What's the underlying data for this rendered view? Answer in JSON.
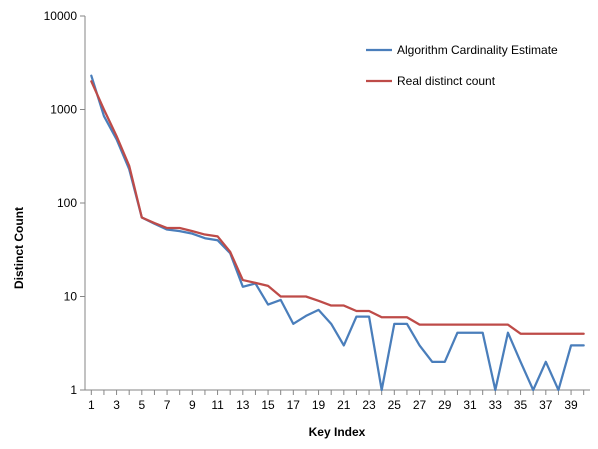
{
  "chart_data": {
    "type": "line",
    "title": "",
    "xlabel": "Key Index",
    "ylabel": "Distinct Count",
    "yscale": "log",
    "ylim": [
      1,
      10000
    ],
    "xlim": [
      0.5,
      40.5
    ],
    "grid": false,
    "legend_position": "top-right",
    "x": [
      1,
      2,
      3,
      4,
      5,
      6,
      7,
      8,
      9,
      10,
      11,
      12,
      13,
      14,
      15,
      16,
      17,
      18,
      19,
      20,
      21,
      22,
      23,
      24,
      25,
      26,
      27,
      28,
      29,
      30,
      31,
      32,
      33,
      34,
      35,
      36,
      37,
      38,
      39,
      40
    ],
    "x_tick_labels": [
      "1",
      "3",
      "5",
      "7",
      "9",
      "11",
      "13",
      "15",
      "17",
      "19",
      "21",
      "23",
      "25",
      "27",
      "29",
      "31",
      "33",
      "35",
      "37",
      "39"
    ],
    "y_tick_labels": [
      "1",
      "10",
      "100",
      "1000",
      "10000"
    ],
    "y_ticks": [
      1,
      10,
      100,
      1000,
      10000
    ],
    "series": [
      {
        "name": "Algorithm Cardinality Estimate",
        "color": "#4a7ebb",
        "values": [
          2300,
          850,
          480,
          230,
          70,
          60,
          52,
          50,
          47,
          42,
          40,
          29,
          12.7,
          13.8,
          8.2,
          9.2,
          5.1,
          6.2,
          7.2,
          5.1,
          3.0,
          6.1,
          6.1,
          1.0,
          5.1,
          5.1,
          3.0,
          2.0,
          2.0,
          4.1,
          4.1,
          4.1,
          1.0,
          4.1,
          2.0,
          1.0,
          2.0,
          1.0,
          3.0,
          3.0
        ]
      },
      {
        "name": "Real distinct count",
        "color": "#be4b48",
        "values": [
          2000,
          1000,
          520,
          250,
          70,
          61,
          54,
          54,
          50,
          46,
          44,
          30,
          15,
          14,
          13,
          10,
          10,
          10,
          9,
          8,
          8,
          7,
          7,
          6,
          6,
          6,
          5,
          5,
          5,
          5,
          5,
          5,
          5,
          5,
          4,
          4,
          4,
          4,
          4,
          4
        ]
      }
    ]
  }
}
